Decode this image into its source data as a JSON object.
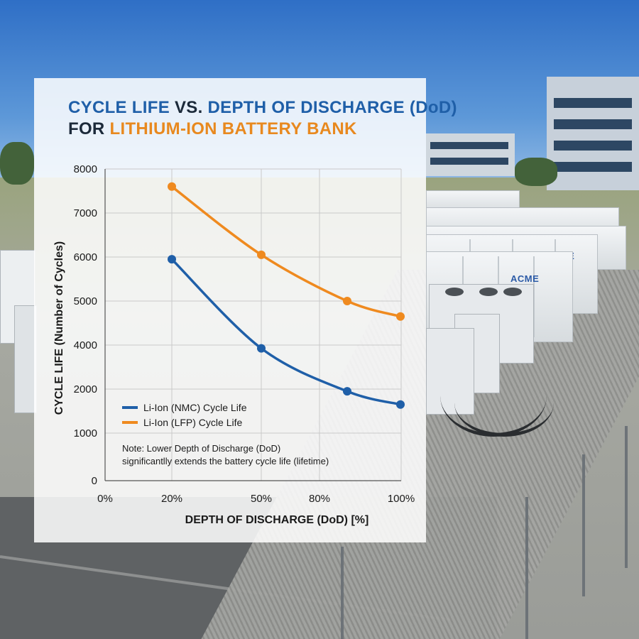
{
  "chart_data": {
    "type": "line",
    "title": {
      "line1_part1": "CYCLE LIFE",
      "line1_part2": "VS.",
      "line1_part3": "DEPTH OF DISCHARGE (DoD)",
      "line2_part1": "FOR",
      "line2_part2": "LITHIUM-ION BATTERY BANK"
    },
    "xlabel": "DEPTH OF DISCHARGE (DoD) [%]",
    "ylabel": "CYCLE LIFE (Number of Cycles)",
    "x_ticks": [
      "0%",
      "20%",
      "50%",
      "80%",
      "100%"
    ],
    "y_ticks": [
      "0",
      "1000",
      "2000",
      "4000",
      "5000",
      "6000",
      "7000",
      "8000"
    ],
    "x_categories": [
      "20%",
      "50%",
      "80%",
      "100%"
    ],
    "series": [
      {
        "name": "Li-Ion (NMC) Cycle Life",
        "color": "#1f5fa8",
        "values": [
          5950,
          3850,
          1950,
          1650
        ]
      },
      {
        "name": "Li-Ion (LFP) Cycle Life",
        "color": "#ef8a1f",
        "values": [
          7600,
          6050,
          5000,
          4650
        ]
      }
    ],
    "note": {
      "line1": "Note: Lower Depth of Discharge (DoD)",
      "line2": "significantlly extends the battery cycle life (lifetime)"
    },
    "grid": true,
    "legend_position": "lower-left"
  },
  "background": {
    "brand_text": "ACME"
  }
}
